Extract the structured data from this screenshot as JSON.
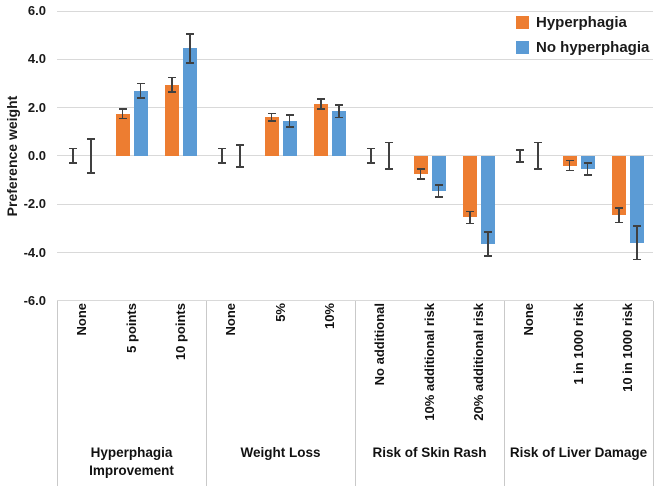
{
  "chart_data": {
    "type": "bar",
    "title": "",
    "ylabel": "Preference weight",
    "xlabel": "",
    "ylim": [
      -6.0,
      6.0
    ],
    "yticks": [
      6.0,
      4.0,
      2.0,
      0.0,
      -2.0,
      -4.0,
      -6.0
    ],
    "ytick_labels": [
      "6.0",
      "4.0",
      "2.0",
      "0.0",
      "-2.0",
      "-4.0",
      "-6.0"
    ],
    "grid": true,
    "legend_position": "top-right",
    "gridline_color": "#d9d9d9",
    "divider_color": "#c9c9c9",
    "error_bar_color": "#404040",
    "groups": [
      {
        "label": "Hyperphagia Improvement",
        "categories": [
          "None",
          "5 points",
          "10 points"
        ]
      },
      {
        "label": "Weight Loss",
        "categories": [
          "None",
          "5%",
          "10%"
        ]
      },
      {
        "label": "Risk of Skin Rash",
        "categories": [
          "No additional",
          "10% additional risk",
          "20% additional risk"
        ]
      },
      {
        "label": "Risk of Liver Damage",
        "categories": [
          "None",
          "1 in 1000 risk",
          "10 in 1000 risk"
        ]
      }
    ],
    "series": [
      {
        "name": "Hyperphagia",
        "color": "#ED7D31",
        "values": [
          0,
          1.75,
          2.95,
          0,
          1.6,
          2.15,
          0,
          -0.75,
          -2.55,
          0,
          -0.4,
          -2.45
        ],
        "errors": [
          0.3,
          0.2,
          0.3,
          0.3,
          0.15,
          0.2,
          0.3,
          0.2,
          0.25,
          0.25,
          0.2,
          0.3
        ]
      },
      {
        "name": "No hyperphagia",
        "color": "#5B9BD5",
        "values": [
          0,
          2.7,
          4.45,
          0,
          1.45,
          1.85,
          0,
          -1.45,
          -3.65,
          0,
          -0.55,
          -3.6
        ],
        "errors": [
          0.7,
          0.3,
          0.6,
          0.45,
          0.25,
          0.25,
          0.55,
          0.25,
          0.5,
          0.55,
          0.25,
          0.7
        ]
      }
    ]
  }
}
